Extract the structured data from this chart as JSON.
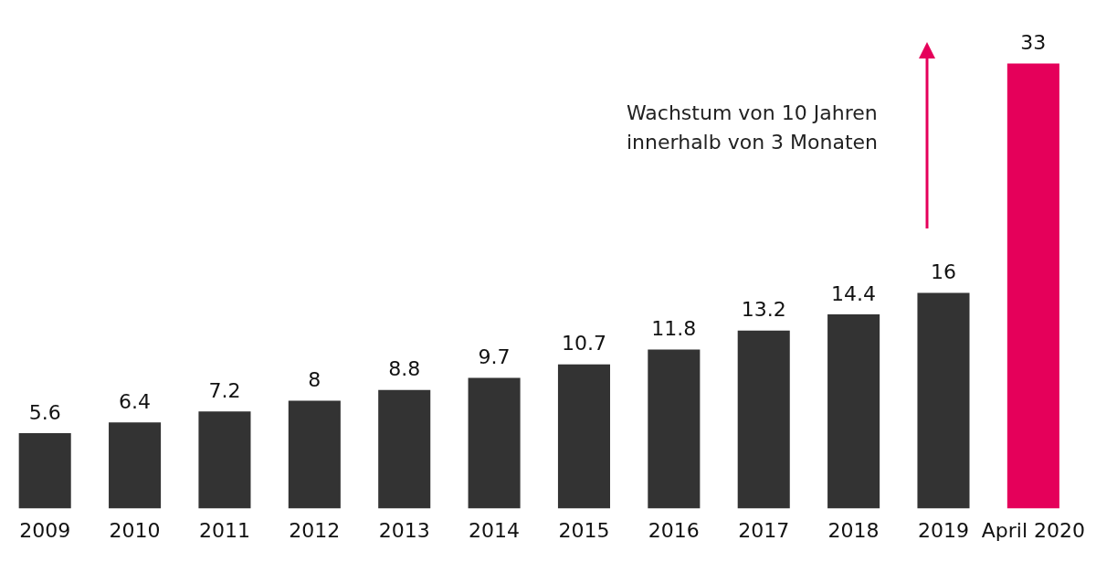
{
  "chart_data": {
    "type": "bar",
    "categories": [
      "2009",
      "2010",
      "2011",
      "2012",
      "2013",
      "2014",
      "2015",
      "2016",
      "2017",
      "2018",
      "2019",
      "April 2020"
    ],
    "values": [
      5.6,
      6.4,
      7.2,
      8,
      8.8,
      9.7,
      10.7,
      11.8,
      13.2,
      14.4,
      16,
      33
    ],
    "colors": [
      "#333333",
      "#333333",
      "#333333",
      "#333333",
      "#333333",
      "#333333",
      "#333333",
      "#333333",
      "#333333",
      "#333333",
      "#333333",
      "#e5005a"
    ],
    "data_labels": true,
    "grid": false,
    "legend": false,
    "tick_labels": "x",
    "annotations": [
      "Wachstum von 10 Jahren innerhalb von 3 Monaten"
    ]
  }
}
